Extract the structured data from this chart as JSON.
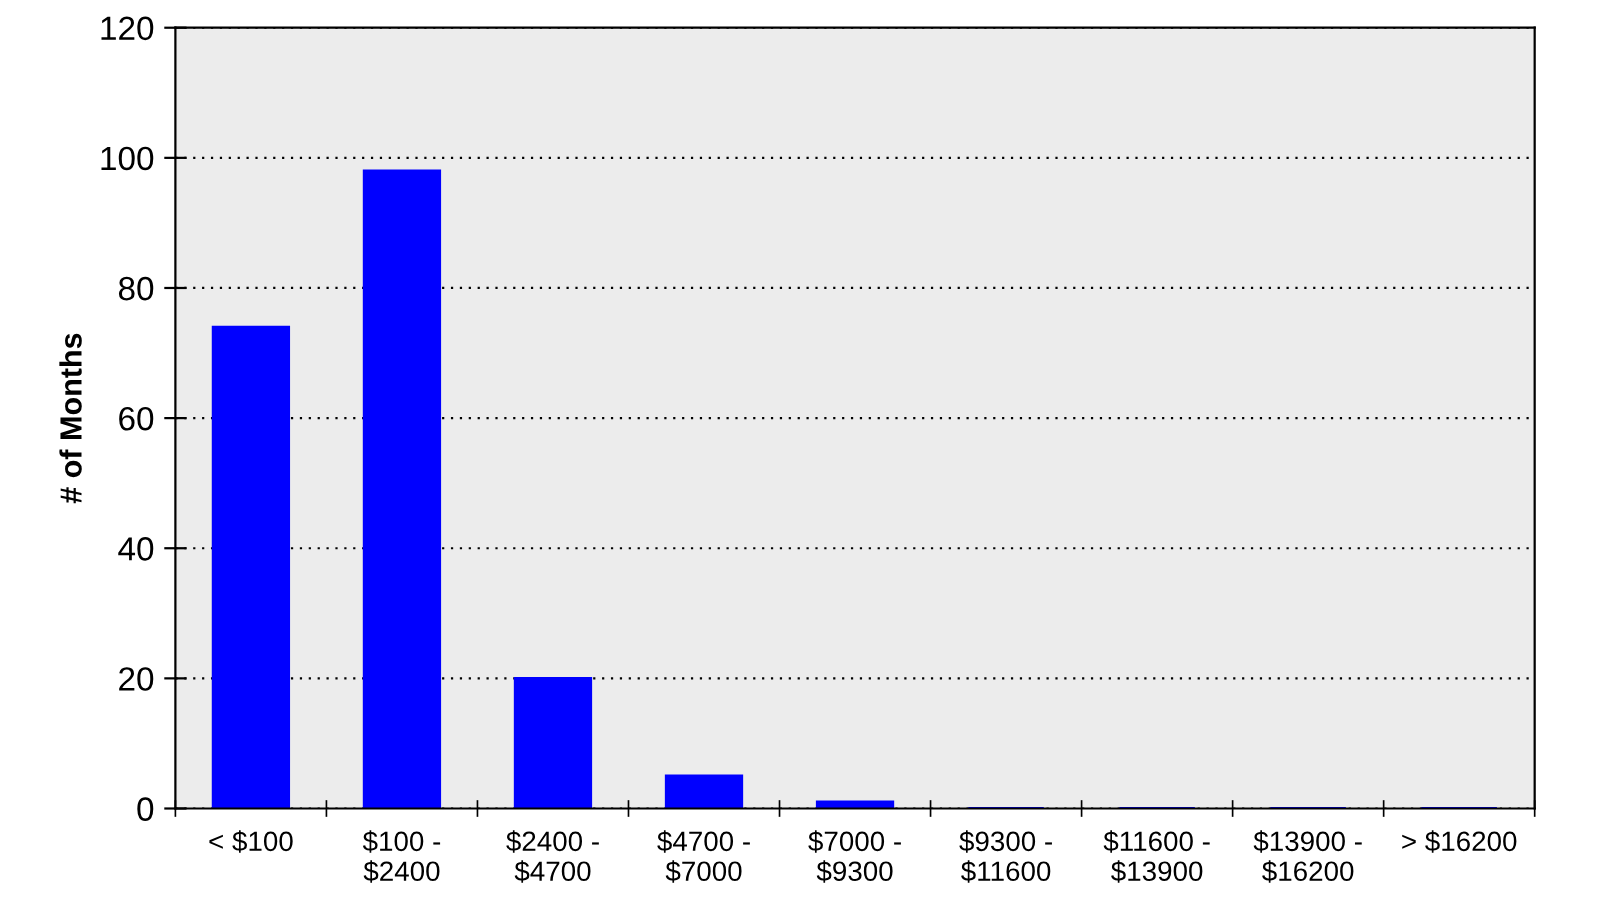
{
  "chart_data": {
    "type": "bar",
    "ylabel": "# of Months",
    "categories": [
      "< $100",
      "$100 -\n$2400",
      "$2400 -\n$4700",
      "$4700 -\n$7000",
      "$7000 -\n$9300",
      "$9300 -\n$11600",
      "$11600 -\n$13900",
      "$13900 -\n$16200",
      "> $16200"
    ],
    "values": [
      74,
      98,
      20,
      5,
      1,
      0,
      0,
      0,
      0
    ],
    "color": "#0000ff",
    "ylim": [
      0,
      120
    ],
    "yticks": [
      0,
      20,
      40,
      60,
      80,
      100,
      120
    ],
    "grid": "y",
    "legend": false
  }
}
